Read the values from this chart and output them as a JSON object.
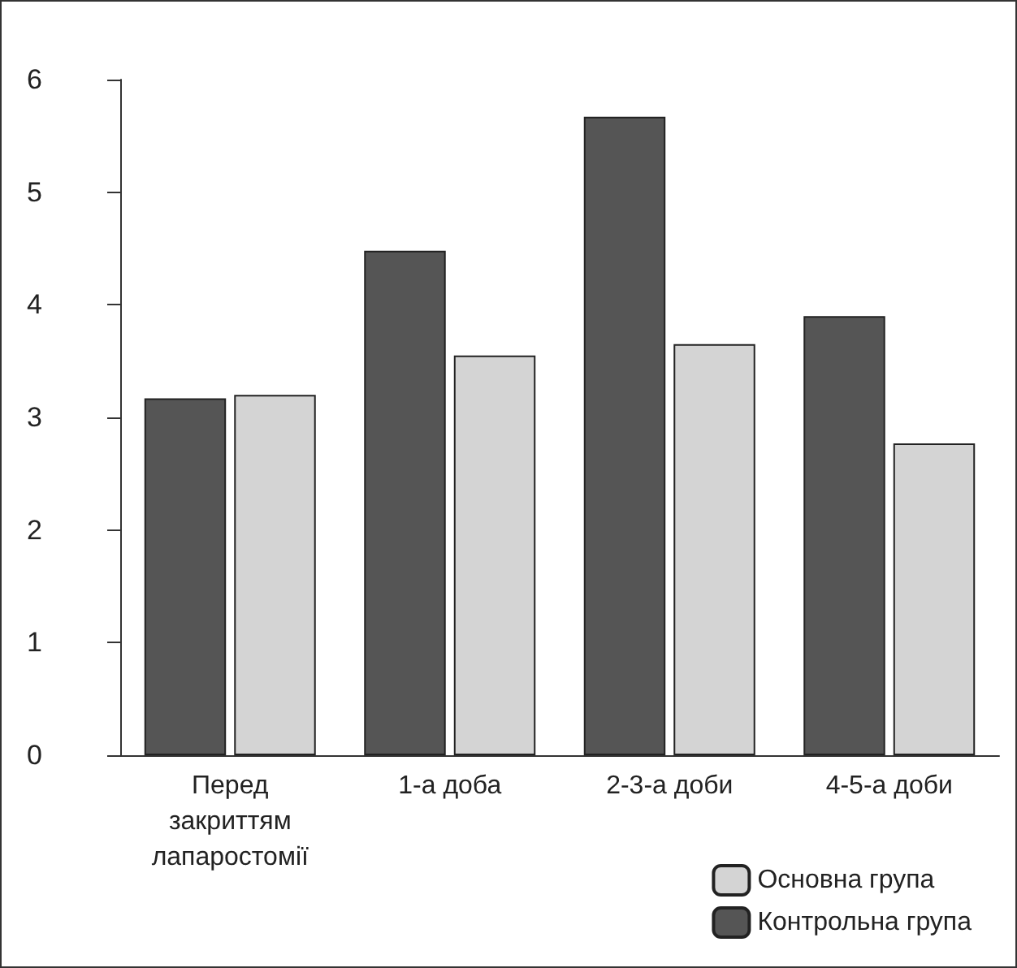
{
  "chart_data": {
    "type": "bar",
    "categories": [
      "Перед закриттям лапаростомії",
      "1-а доба",
      "2-3-а доби",
      "4-5-а доби"
    ],
    "series": [
      {
        "name": "Контрольна група",
        "color": "#555555",
        "values": [
          3.17,
          4.48,
          5.67,
          3.9
        ]
      },
      {
        "name": "Основна група",
        "color": "#d4d4d4",
        "values": [
          3.2,
          3.55,
          3.65,
          2.77
        ]
      }
    ],
    "ylim": [
      0,
      6
    ],
    "yticks": [
      0,
      1,
      2,
      3,
      4,
      5,
      6
    ],
    "grid": false,
    "legend": "bottom right"
  }
}
